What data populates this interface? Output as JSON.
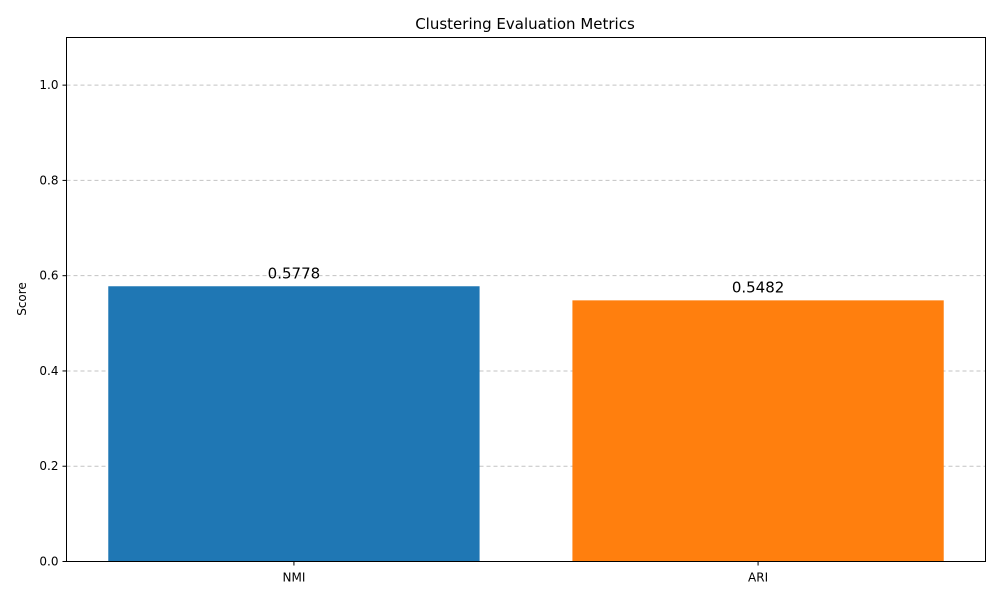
{
  "chart_data": {
    "type": "bar",
    "title": "Clustering Evaluation Metrics",
    "xlabel": "",
    "ylabel": "Score",
    "categories": [
      "NMI",
      "ARI"
    ],
    "values": [
      0.5778,
      0.5482
    ],
    "value_labels": [
      "0.5778",
      "0.5482"
    ],
    "colors": [
      "#1f77b4",
      "#ff7f0e"
    ],
    "ylim": [
      0,
      1.1
    ],
    "yticks": [
      0.0,
      0.2,
      0.4,
      0.6,
      0.8,
      1.0
    ],
    "ytick_labels": [
      "0.0",
      "0.2",
      "0.4",
      "0.6",
      "0.8",
      "1.0"
    ],
    "grid": true
  }
}
